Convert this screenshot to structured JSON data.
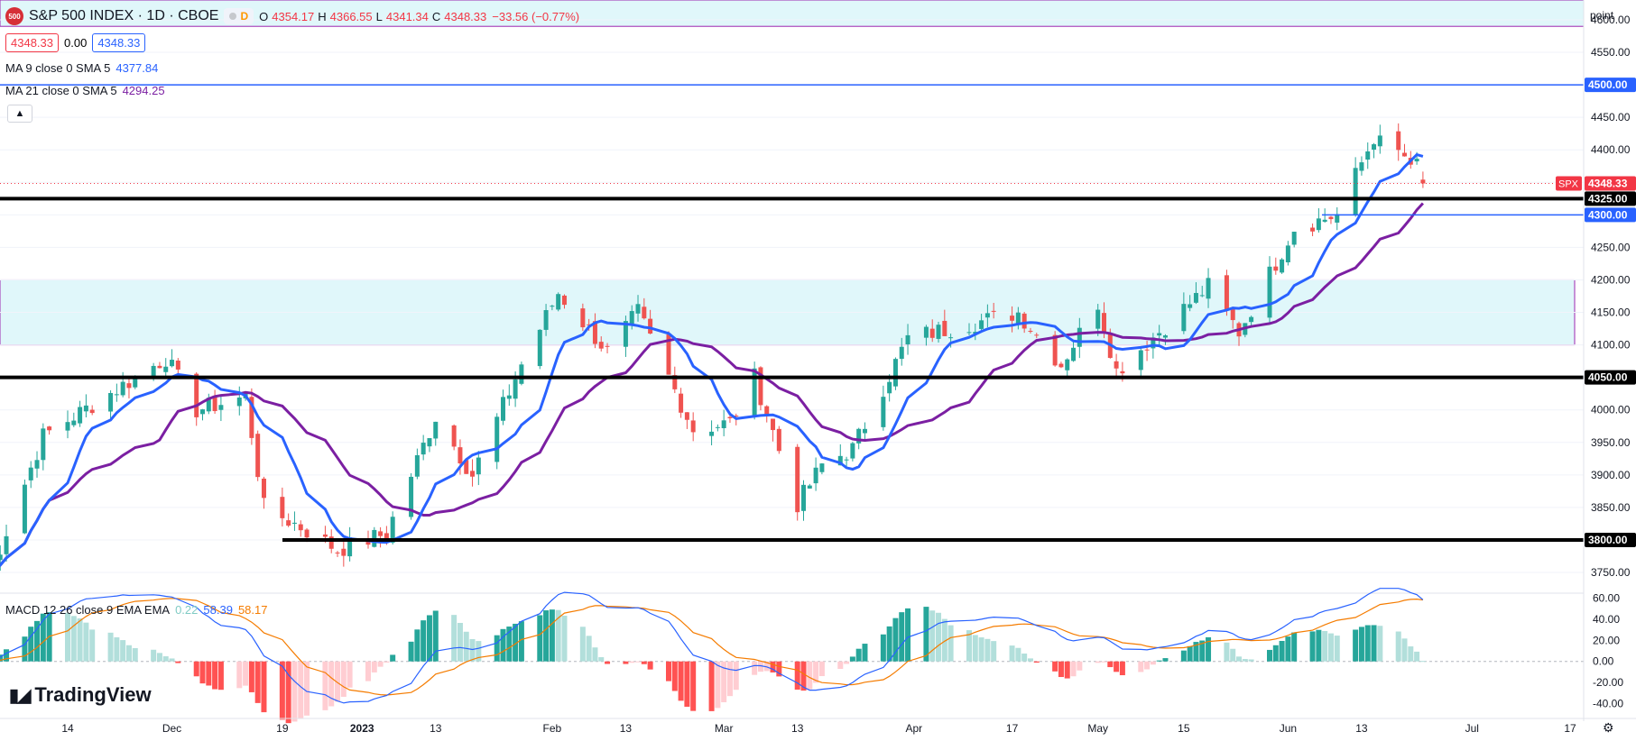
{
  "header": {
    "logo_text": "500",
    "symbol": "S&P 500 INDEX · 1D · CBOE",
    "interval_letter": "D",
    "open_label": "O",
    "open": "4354.17",
    "high_label": "H",
    "high": "4366.55",
    "low_label": "L",
    "low": "4341.34",
    "close_label": "C",
    "close": "4348.33",
    "change": "−33.56 (−0.77%)",
    "bid": "4348.33",
    "spread": "0.00",
    "ask": "4348.33"
  },
  "legends": {
    "ma9_label": "MA 9 close 0 SMA 5",
    "ma9_value": "4377.84",
    "ma21_label": "MA 21 close 0 SMA 5",
    "ma21_value": "4294.25",
    "macd_label": "MACD 12 26 close 9 EMA EMA",
    "macd_hist": "0.22",
    "macd_line": "58.39",
    "macd_signal": "58.17"
  },
  "axis": {
    "unit": "point",
    "price_ticks": [
      "4600.00",
      "4550.00",
      "4500.00",
      "4450.00",
      "4400.00",
      "4350.00",
      "4300.00",
      "4250.00",
      "4200.00",
      "4150.00",
      "4100.00",
      "4050.00",
      "4000.00",
      "3950.00",
      "3900.00",
      "3850.00",
      "3800.00",
      "3750.00"
    ],
    "macd_ticks": [
      "60.00",
      "40.00",
      "20.00",
      "0.00",
      "-20.00",
      "-40.00"
    ],
    "time_labels": [
      "14",
      "Dec",
      "19",
      "2023",
      "13",
      "Feb",
      "13",
      "Mar",
      "13",
      "Apr",
      "17",
      "May",
      "15",
      "Jun",
      "13",
      "Jul",
      "17"
    ]
  },
  "price_labels": {
    "spx_tag": "SPX",
    "spx_value": "4348.33",
    "l4500": "4500.00",
    "l4325": "4325.00",
    "l4300": "4300.00",
    "l4050": "4050.00",
    "l3800": "3800.00"
  },
  "brand": "TradingView",
  "colors": {
    "up": "#26a69a",
    "down": "#ef5350",
    "ma9": "#2962ff",
    "ma21": "#7b1fa2",
    "macd": "#2962ff",
    "signal": "#f57c00",
    "zone": "#e0f7fa"
  },
  "chart_data": {
    "type": "candlestick",
    "title": "S&P 500 INDEX · 1D · CBOE",
    "x_range": [
      "2022-11-01",
      "2023-07-21"
    ],
    "y_range": [
      3720,
      4610
    ],
    "support_resistance_levels": [
      4500,
      4325,
      4300,
      4050,
      3800
    ],
    "zones": [
      {
        "from": 4100,
        "to": 4200
      },
      {
        "from": 4590,
        "to": 4640
      }
    ],
    "anchors": [
      {
        "date": "2022-11-01",
        "close": 3740
      },
      {
        "date": "2022-11-10",
        "close": 3960
      },
      {
        "date": "2022-11-15",
        "close": 3990
      },
      {
        "date": "2022-11-30",
        "close": 4080
      },
      {
        "date": "2022-12-05",
        "close": 4000
      },
      {
        "date": "2022-12-13",
        "close": 4020
      },
      {
        "date": "2022-12-16",
        "close": 3850
      },
      {
        "date": "2022-12-22",
        "close": 3820
      },
      {
        "date": "2022-12-28",
        "close": 3785
      },
      {
        "date": "2023-01-05",
        "close": 3810
      },
      {
        "date": "2023-01-13",
        "close": 3990
      },
      {
        "date": "2023-01-19",
        "close": 3900
      },
      {
        "date": "2023-01-27",
        "close": 4070
      },
      {
        "date": "2023-02-02",
        "close": 4180
      },
      {
        "date": "2023-02-10",
        "close": 4090
      },
      {
        "date": "2023-02-15",
        "close": 4150
      },
      {
        "date": "2023-02-24",
        "close": 3970
      },
      {
        "date": "2023-03-02",
        "close": 3980
      },
      {
        "date": "2023-03-06",
        "close": 4050
      },
      {
        "date": "2023-03-13",
        "close": 3855
      },
      {
        "date": "2023-03-17",
        "close": 3915
      },
      {
        "date": "2023-03-22",
        "close": 3940
      },
      {
        "date": "2023-03-31",
        "close": 4110
      },
      {
        "date": "2023-04-18",
        "close": 4150
      },
      {
        "date": "2023-04-25",
        "close": 4070
      },
      {
        "date": "2023-05-01",
        "close": 4165
      },
      {
        "date": "2023-05-04",
        "close": 4060
      },
      {
        "date": "2023-05-19",
        "close": 4190
      },
      {
        "date": "2023-05-24",
        "close": 4120
      },
      {
        "date": "2023-06-02",
        "close": 4280
      },
      {
        "date": "2023-06-09",
        "close": 4300
      },
      {
        "date": "2023-06-15",
        "close": 4420
      },
      {
        "date": "2023-06-16",
        "close": 4410
      },
      {
        "date": "2023-06-20",
        "close": 4390
      },
      {
        "date": "2023-06-21",
        "close": 4365
      },
      {
        "date": "2023-06-22",
        "close": 4381
      },
      {
        "date": "2023-06-23",
        "close": 4348
      }
    ],
    "last_bar": {
      "open": 4354.17,
      "high": 4366.55,
      "low": 4341.34,
      "close": 4348.33
    },
    "series": [
      {
        "name": "MA 9 close 0 SMA 5",
        "last": 4377.84
      },
      {
        "name": "MA 21 close 0 SMA 5",
        "last": 4294.25
      }
    ],
    "macd": {
      "ylim": [
        -48,
        62
      ],
      "macd_last": 58.39,
      "signal_last": 58.17,
      "hist_last": 0.22
    }
  }
}
